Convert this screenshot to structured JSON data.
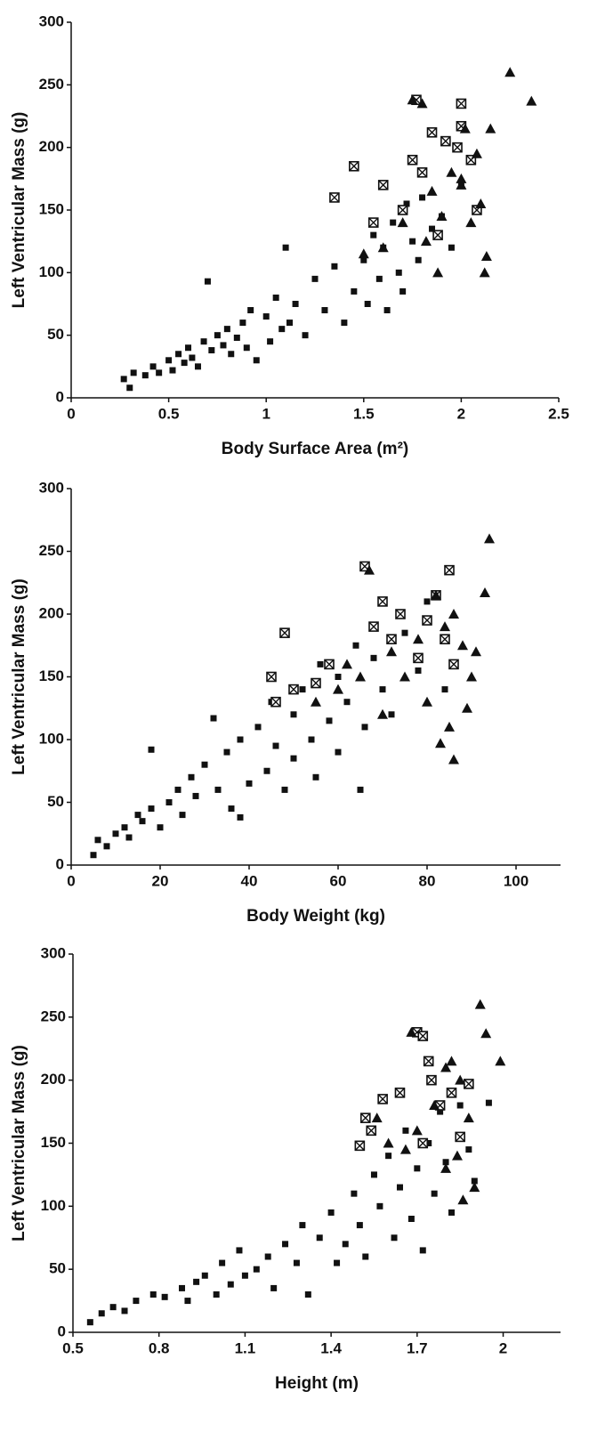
{
  "chart_data": [
    {
      "type": "scatter",
      "xlabel": "Body Surface Area (m²)",
      "ylabel": "Left Ventricular Mass (g)",
      "xlim": [
        0,
        2.5
      ],
      "ylim": [
        0,
        300
      ],
      "xticks": [
        0,
        0.5,
        1,
        1.5,
        2,
        2.5
      ],
      "yticks": [
        0,
        50,
        100,
        150,
        200,
        250,
        300
      ],
      "series": [
        {
          "marker": "square",
          "color": "#111111",
          "x": [
            0.27,
            0.3,
            0.32,
            0.38,
            0.42,
            0.45,
            0.5,
            0.52,
            0.55,
            0.58,
            0.6,
            0.62,
            0.65,
            0.68,
            0.7,
            0.72,
            0.75,
            0.78,
            0.8,
            0.82,
            0.85,
            0.88,
            0.9,
            0.92,
            0.95,
            1.0,
            1.02,
            1.05,
            1.08,
            1.1,
            1.12,
            1.15,
            1.2,
            1.25,
            1.3,
            1.35,
            1.4,
            1.45,
            1.5,
            1.52,
            1.55,
            1.58,
            1.6,
            1.62,
            1.65,
            1.68,
            1.7,
            1.72,
            1.75,
            1.78,
            1.8,
            1.85,
            1.9,
            1.95,
            2.0
          ],
          "y": [
            15,
            8,
            20,
            18,
            25,
            20,
            30,
            22,
            35,
            28,
            40,
            32,
            25,
            45,
            93,
            38,
            50,
            42,
            55,
            35,
            48,
            60,
            40,
            70,
            30,
            65,
            45,
            80,
            55,
            120,
            60,
            75,
            50,
            95,
            70,
            105,
            60,
            85,
            110,
            75,
            130,
            95,
            120,
            70,
            140,
            100,
            85,
            155,
            125,
            110,
            160,
            135,
            145,
            120,
            170
          ]
        },
        {
          "marker": "crossed",
          "color": "#111111",
          "x": [
            1.35,
            1.45,
            1.55,
            1.6,
            1.7,
            1.75,
            1.77,
            1.8,
            1.85,
            1.88,
            1.92,
            1.98,
            2.0,
            2.0,
            2.05,
            2.08
          ],
          "y": [
            160,
            185,
            140,
            170,
            150,
            190,
            238,
            180,
            212,
            130,
            205,
            200,
            235,
            217,
            190,
            150
          ]
        },
        {
          "marker": "triangle",
          "color": "#111111",
          "x": [
            1.5,
            1.6,
            1.7,
            1.75,
            1.8,
            1.85,
            1.9,
            1.95,
            2.0,
            2.02,
            2.05,
            2.08,
            2.1,
            2.12,
            2.13,
            2.15,
            2.0,
            2.25,
            2.36,
            1.82,
            1.88
          ],
          "y": [
            115,
            120,
            140,
            238,
            235,
            165,
            145,
            180,
            170,
            215,
            140,
            195,
            155,
            100,
            113,
            215,
            175,
            260,
            237,
            125,
            100
          ]
        }
      ]
    },
    {
      "type": "scatter",
      "xlabel": "Body Weight (kg)",
      "ylabel": "Left Ventricular Mass (g)",
      "xlim": [
        0,
        110
      ],
      "ylim": [
        0,
        300
      ],
      "xticks": [
        0,
        20,
        40,
        60,
        80,
        100
      ],
      "yticks": [
        0,
        50,
        100,
        150,
        200,
        250,
        300
      ],
      "series": [
        {
          "marker": "square",
          "color": "#111111",
          "x": [
            5,
            6,
            8,
            10,
            12,
            13,
            15,
            16,
            18,
            18,
            20,
            22,
            24,
            25,
            27,
            28,
            30,
            32,
            33,
            35,
            36,
            38,
            38,
            40,
            42,
            44,
            45,
            46,
            48,
            50,
            50,
            52,
            54,
            55,
            56,
            58,
            60,
            60,
            62,
            64,
            65,
            66,
            68,
            70,
            72,
            75,
            78,
            80,
            84
          ],
          "y": [
            8,
            20,
            15,
            25,
            30,
            22,
            40,
            35,
            92,
            45,
            30,
            50,
            60,
            40,
            70,
            55,
            80,
            117,
            60,
            90,
            45,
            100,
            38,
            65,
            110,
            75,
            130,
            95,
            60,
            120,
            85,
            140,
            100,
            70,
            160,
            115,
            150,
            90,
            130,
            175,
            60,
            110,
            165,
            140,
            120,
            185,
            155,
            210,
            140
          ]
        },
        {
          "marker": "crossed",
          "color": "#111111",
          "x": [
            45,
            46,
            48,
            50,
            55,
            58,
            66,
            68,
            70,
            72,
            74,
            78,
            80,
            82,
            84,
            85,
            86
          ],
          "y": [
            150,
            130,
            185,
            140,
            145,
            160,
            238,
            190,
            210,
            180,
            200,
            165,
            195,
            215,
            180,
            235,
            160
          ]
        },
        {
          "marker": "triangle",
          "color": "#111111",
          "x": [
            55,
            60,
            62,
            65,
            67,
            70,
            72,
            75,
            78,
            80,
            82,
            84,
            85,
            86,
            88,
            89,
            90,
            91,
            93,
            94,
            83,
            86
          ],
          "y": [
            130,
            140,
            160,
            150,
            235,
            120,
            170,
            150,
            180,
            130,
            215,
            190,
            110,
            200,
            175,
            125,
            150,
            170,
            217,
            260,
            97,
            84
          ]
        }
      ]
    },
    {
      "type": "scatter",
      "xlabel": "Height (m)",
      "ylabel": "Left Ventricular Mass (g)",
      "xlim": [
        0.5,
        2.2
      ],
      "ylim": [
        0,
        300
      ],
      "xticks": [
        0.5,
        0.8,
        1.1,
        1.4,
        1.7,
        2
      ],
      "yticks": [
        0,
        50,
        100,
        150,
        200,
        250,
        300
      ],
      "series": [
        {
          "marker": "square",
          "color": "#111111",
          "x": [
            0.56,
            0.6,
            0.64,
            0.68,
            0.72,
            0.78,
            0.82,
            0.88,
            0.9,
            0.93,
            0.96,
            1.0,
            1.02,
            1.05,
            1.08,
            1.1,
            1.14,
            1.18,
            1.2,
            1.24,
            1.28,
            1.3,
            1.32,
            1.36,
            1.4,
            1.42,
            1.45,
            1.48,
            1.5,
            1.52,
            1.55,
            1.57,
            1.6,
            1.62,
            1.64,
            1.66,
            1.68,
            1.7,
            1.72,
            1.74,
            1.76,
            1.78,
            1.8,
            1.82,
            1.85,
            1.88,
            1.9,
            1.95
          ],
          "y": [
            8,
            15,
            20,
            17,
            25,
            30,
            28,
            35,
            25,
            40,
            45,
            30,
            55,
            38,
            65,
            45,
            50,
            60,
            35,
            70,
            55,
            85,
            30,
            75,
            95,
            55,
            70,
            110,
            85,
            60,
            125,
            100,
            140,
            75,
            115,
            160,
            90,
            130,
            65,
            150,
            110,
            175,
            135,
            95,
            180,
            145,
            120,
            182
          ]
        },
        {
          "marker": "crossed",
          "color": "#111111",
          "x": [
            1.5,
            1.52,
            1.54,
            1.58,
            1.64,
            1.7,
            1.72,
            1.74,
            1.75,
            1.78,
            1.82,
            1.85,
            1.88,
            1.72
          ],
          "y": [
            148,
            170,
            160,
            185,
            190,
            238,
            235,
            215,
            200,
            180,
            190,
            155,
            197,
            150
          ]
        },
        {
          "marker": "triangle",
          "color": "#111111",
          "x": [
            1.56,
            1.6,
            1.66,
            1.68,
            1.7,
            1.76,
            1.8,
            1.82,
            1.84,
            1.85,
            1.88,
            1.9,
            1.92,
            1.94,
            1.99,
            1.86,
            1.8
          ],
          "y": [
            170,
            150,
            145,
            238,
            160,
            180,
            210,
            215,
            140,
            200,
            170,
            115,
            260,
            237,
            215,
            105,
            130
          ]
        }
      ]
    }
  ]
}
